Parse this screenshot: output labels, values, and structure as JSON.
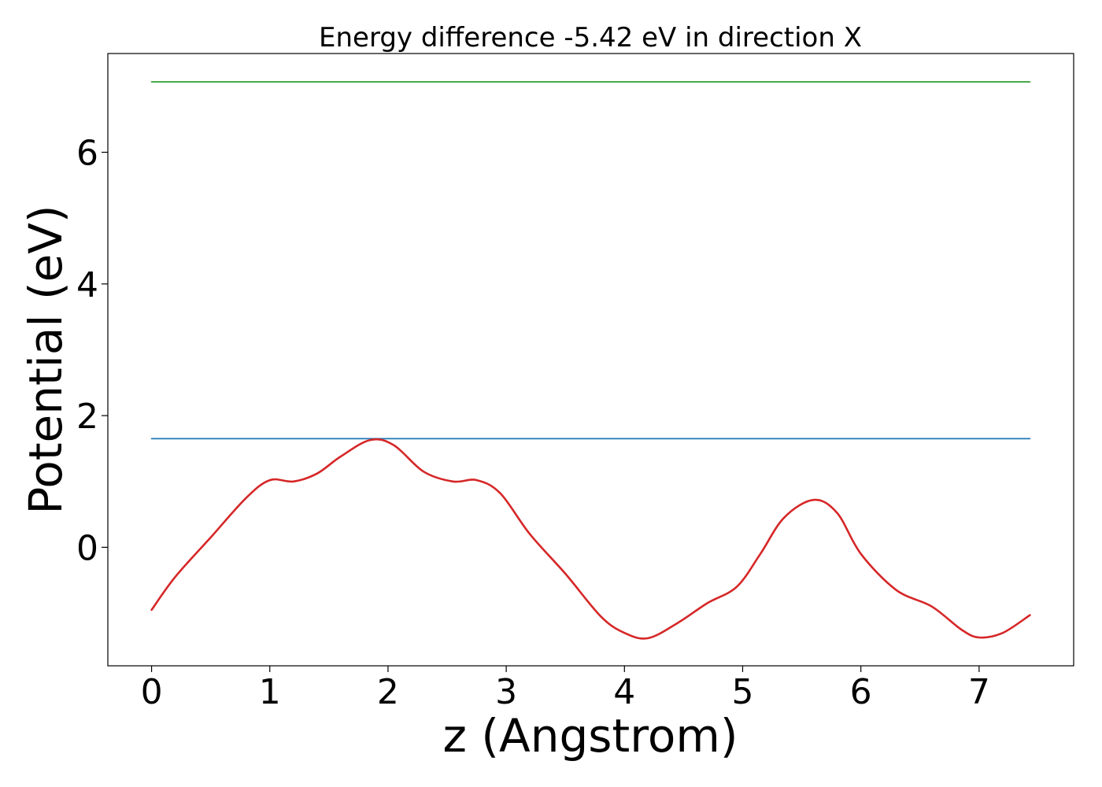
{
  "chart_data": {
    "type": "line",
    "title": "Energy difference -5.42 eV in direction X",
    "xlabel": "z (Angstrom)",
    "ylabel": "Potential (eV)",
    "xlim": [
      -0.37,
      7.8
    ],
    "ylim": [
      -1.8,
      7.5
    ],
    "x_ticks": [
      0,
      1,
      2,
      3,
      4,
      5,
      6,
      7
    ],
    "x_tick_labels": [
      "0",
      "1",
      "2",
      "3",
      "4",
      "5",
      "6",
      "7"
    ],
    "y_ticks": [
      0,
      2,
      4,
      6
    ],
    "y_tick_labels": [
      "0",
      "2",
      "4",
      "6"
    ],
    "grid": false,
    "series": [
      {
        "color": "#2ca02c",
        "x": [
          0,
          7.43
        ],
        "y": [
          7.07,
          7.07
        ]
      },
      {
        "color": "#1f77b4",
        "x": [
          0,
          7.43
        ],
        "y": [
          1.65,
          1.65
        ]
      },
      {
        "color": "#d62728",
        "x": [
          0,
          0.2,
          0.5,
          0.8,
          1.0,
          1.2,
          1.4,
          1.6,
          1.85,
          2.05,
          2.3,
          2.55,
          2.75,
          2.95,
          3.2,
          3.5,
          3.8,
          4.0,
          4.2,
          4.45,
          4.7,
          4.95,
          5.15,
          5.35,
          5.6,
          5.8,
          6.0,
          6.3,
          6.6,
          6.85,
          7.0,
          7.2,
          7.43
        ],
        "y": [
          -0.95,
          -0.45,
          0.15,
          0.75,
          1.02,
          1.0,
          1.12,
          1.38,
          1.63,
          1.55,
          1.15,
          1.0,
          1.02,
          0.82,
          0.2,
          -0.4,
          -1.05,
          -1.3,
          -1.38,
          -1.15,
          -0.85,
          -0.6,
          -0.1,
          0.45,
          0.72,
          0.52,
          -0.1,
          -0.65,
          -0.9,
          -1.25,
          -1.37,
          -1.3,
          -1.03
        ]
      }
    ]
  }
}
